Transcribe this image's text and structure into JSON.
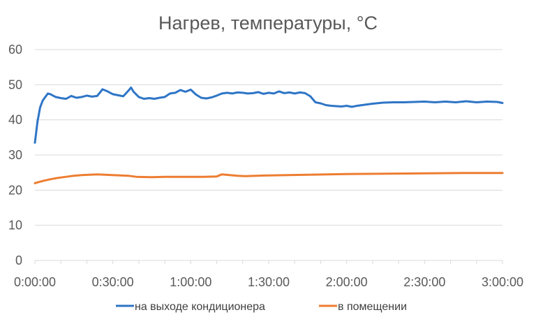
{
  "chart_data": {
    "type": "line",
    "title": "Нагрев, температуры, °C",
    "xlabel": "",
    "ylabel": "",
    "x_unit": "h:mm:ss",
    "xlim": [
      "0:00:00",
      "3:00:00"
    ],
    "ylim": [
      0,
      60
    ],
    "y_ticks": [
      "0",
      "10",
      "20",
      "30",
      "40",
      "50",
      "60"
    ],
    "x_ticks": [
      "0:00:00",
      "0:30:00",
      "1:00:00",
      "1:30:00",
      "2:00:00",
      "2:30:00",
      "3:00:00"
    ],
    "grid": "horizontal",
    "legend_position": "bottom",
    "series": [
      {
        "name": "на выходе кондиционера",
        "color": "#2e75c6",
        "x": [
          "0:00:00",
          "0:00:30",
          "0:01:00",
          "0:01:30",
          "0:02:00",
          "0:02:30",
          "0:03:00",
          "0:04:00",
          "0:05:00",
          "0:06:00",
          "0:08:00",
          "0:10:00",
          "0:12:00",
          "0:14:00",
          "0:16:00",
          "0:18:00",
          "0:20:00",
          "0:22:00",
          "0:24:00",
          "0:26:00",
          "0:28:00",
          "0:30:00",
          "0:32:00",
          "0:34:00",
          "0:36:00",
          "0:37:00",
          "0:38:00",
          "0:40:00",
          "0:42:00",
          "0:44:00",
          "0:46:00",
          "0:48:00",
          "0:50:00",
          "0:52:00",
          "0:54:00",
          "0:56:00",
          "0:58:00",
          "1:00:00",
          "1:02:00",
          "1:04:00",
          "1:06:00",
          "1:08:00",
          "1:10:00",
          "1:12:00",
          "1:14:00",
          "1:16:00",
          "1:18:00",
          "1:20:00",
          "1:22:00",
          "1:24:00",
          "1:26:00",
          "1:28:00",
          "1:30:00",
          "1:32:00",
          "1:34:00",
          "1:36:00",
          "1:38:00",
          "1:40:00",
          "1:42:00",
          "1:44:00",
          "1:46:00",
          "1:48:00",
          "1:50:00",
          "1:52:00",
          "1:54:00",
          "1:56:00",
          "1:58:00",
          "2:00:00",
          "2:02:00",
          "2:04:00",
          "2:06:00",
          "2:08:00",
          "2:10:00",
          "2:14:00",
          "2:18:00",
          "2:22:00",
          "2:26:00",
          "2:30:00",
          "2:34:00",
          "2:38:00",
          "2:42:00",
          "2:46:00",
          "2:50:00",
          "2:54:00",
          "2:58:00",
          "3:00:00"
        ],
        "values": [
          33.5,
          36.5,
          39.5,
          41.5,
          43.5,
          44.5,
          45.5,
          46.5,
          47.5,
          47.3,
          46.5,
          46.2,
          46.0,
          46.8,
          46.3,
          46.5,
          46.9,
          46.6,
          46.8,
          48.7,
          48.1,
          47.3,
          47.0,
          46.7,
          48.3,
          49.2,
          48.0,
          46.5,
          46.0,
          46.2,
          46.0,
          46.3,
          46.5,
          47.5,
          47.7,
          48.5,
          48.0,
          48.6,
          47.2,
          46.3,
          46.1,
          46.4,
          46.9,
          47.5,
          47.7,
          47.5,
          47.8,
          47.7,
          47.5,
          47.6,
          47.9,
          47.4,
          47.7,
          47.5,
          48.1,
          47.6,
          47.8,
          47.5,
          47.8,
          47.6,
          46.7,
          45.0,
          44.7,
          44.2,
          44.0,
          43.9,
          43.8,
          44.0,
          43.7,
          44.0,
          44.2,
          44.4,
          44.6,
          44.9,
          45.0,
          45.0,
          45.1,
          45.2,
          45.0,
          45.2,
          45.0,
          45.3,
          45.0,
          45.2,
          45.1,
          44.8
        ]
      },
      {
        "name": "в помещении",
        "color": "#ed7d31",
        "x": [
          "0:00:00",
          "0:03:00",
          "0:06:00",
          "0:09:00",
          "0:12:00",
          "0:15:00",
          "0:18:00",
          "0:21:00",
          "0:24:00",
          "0:27:00",
          "0:30:00",
          "0:33:00",
          "0:36:00",
          "0:39:00",
          "0:45:00",
          "0:50:00",
          "0:55:00",
          "1:00:00",
          "1:05:00",
          "1:10:00",
          "1:12:00",
          "1:15:00",
          "1:18:00",
          "1:21:00",
          "1:30:00",
          "1:45:00",
          "2:00:00",
          "2:15:00",
          "2:30:00",
          "2:45:00",
          "3:00:00"
        ],
        "values": [
          22.0,
          22.6,
          23.1,
          23.5,
          23.8,
          24.1,
          24.3,
          24.4,
          24.5,
          24.4,
          24.3,
          24.2,
          24.1,
          23.8,
          23.7,
          23.8,
          23.8,
          23.8,
          23.8,
          23.9,
          24.5,
          24.3,
          24.1,
          24.0,
          24.2,
          24.4,
          24.6,
          24.7,
          24.8,
          24.9,
          24.9
        ]
      }
    ]
  }
}
